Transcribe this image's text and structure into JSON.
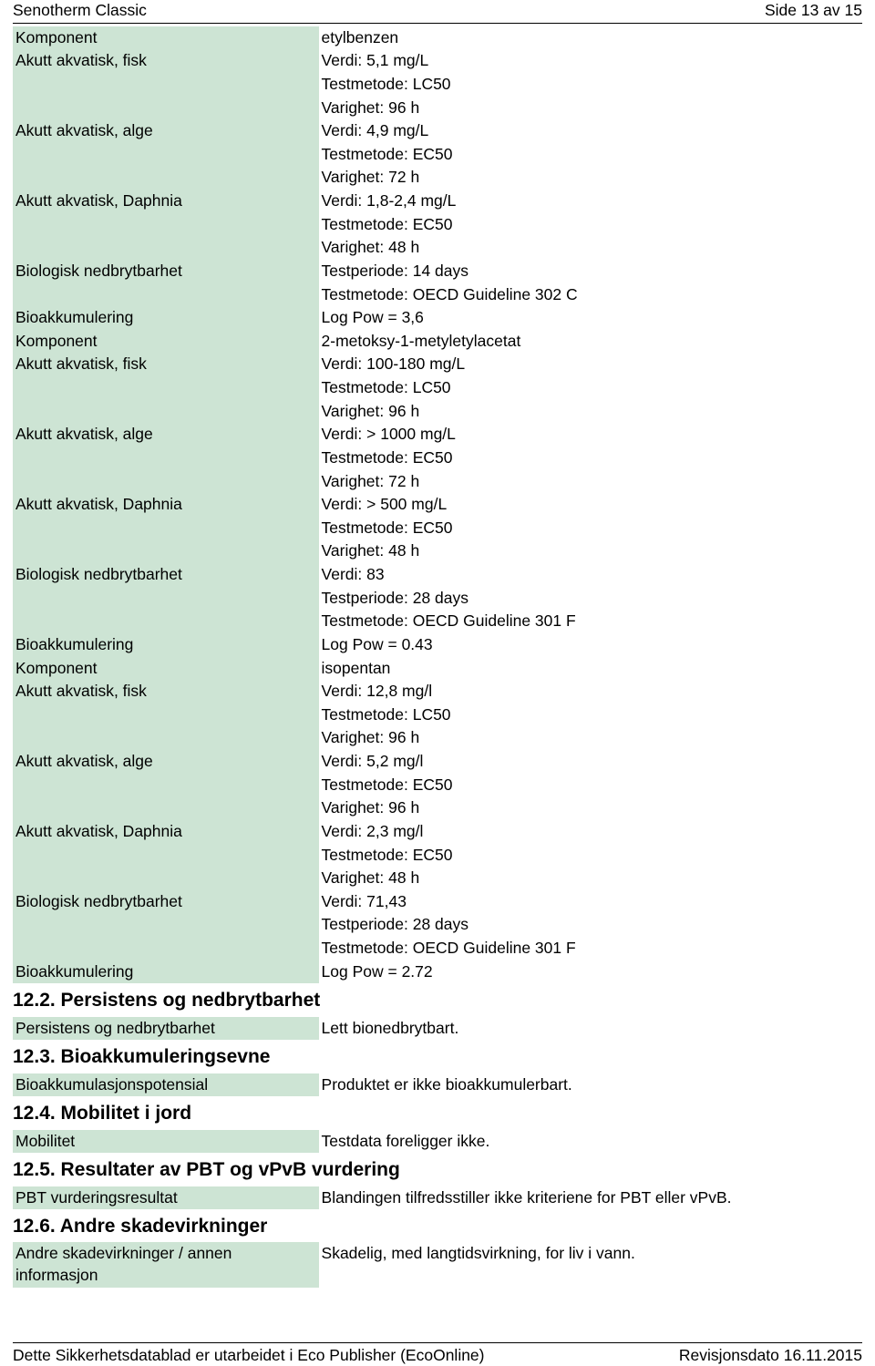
{
  "header": {
    "title": "Senotherm Classic",
    "page": "Side 13 av 15"
  },
  "row_bg": "#cde4d4",
  "rows": [
    {
      "label": "Komponent",
      "value": "etylbenzen"
    },
    {
      "label": "Akutt akvatisk, fisk",
      "value": "Verdi: 5,1 mg/L\nTestmetode: LC50\nVarighet: 96 h"
    },
    {
      "label": "Akutt akvatisk, alge",
      "value": "Verdi: 4,9 mg/L\nTestmetode: EC50\nVarighet: 72 h"
    },
    {
      "label": "Akutt akvatisk, Daphnia",
      "value": "Verdi: 1,8-2,4 mg/L\nTestmetode: EC50\nVarighet: 48 h"
    },
    {
      "label": "Biologisk nedbrytbarhet",
      "value": "Testperiode: 14 days\nTestmetode: OECD Guideline 302 C"
    },
    {
      "label": "Bioakkumulering",
      "value": "Log Pow = 3,6"
    },
    {
      "label": "Komponent",
      "value": "2-metoksy-1-metyletylacetat"
    },
    {
      "label": "Akutt akvatisk, fisk",
      "value": "Verdi: 100-180 mg/L\nTestmetode: LC50\nVarighet: 96 h"
    },
    {
      "label": "Akutt akvatisk, alge",
      "value": "Verdi: > 1000 mg/L\nTestmetode: EC50\nVarighet: 72 h"
    },
    {
      "label": "Akutt akvatisk, Daphnia",
      "value": "Verdi: > 500 mg/L\nTestmetode: EC50\nVarighet: 48 h"
    },
    {
      "label": "Biologisk nedbrytbarhet",
      "value": "Verdi: 83\nTestperiode: 28 days\nTestmetode: OECD Guideline 301 F"
    },
    {
      "label": "Bioakkumulering",
      "value": "Log Pow = 0.43"
    },
    {
      "label": "Komponent",
      "value": "isopentan"
    },
    {
      "label": "Akutt akvatisk, fisk",
      "value": "Verdi: 12,8 mg/l\nTestmetode: LC50\nVarighet: 96 h"
    },
    {
      "label": "Akutt akvatisk, alge",
      "value": "Verdi: 5,2 mg/l\nTestmetode: EC50\nVarighet: 96 h"
    },
    {
      "label": "Akutt akvatisk, Daphnia",
      "value": "Verdi: 2,3 mg/l\nTestmetode: EC50\nVarighet: 48 h"
    },
    {
      "label": "Biologisk nedbrytbarhet",
      "value": "Verdi: 71,43\nTestperiode: 28 days\nTestmetode: OECD Guideline 301 F"
    },
    {
      "label": "Bioakkumulering",
      "value": "Log Pow = 2.72"
    }
  ],
  "section122": {
    "heading": "12.2. Persistens og nedbrytbarhet",
    "rows": [
      {
        "label": "Persistens og nedbrytbarhet",
        "value": "Lett bionedbrytbart."
      }
    ]
  },
  "section123": {
    "heading": "12.3. Bioakkumuleringsevne",
    "rows": [
      {
        "label": "Bioakkumulasjonspotensial",
        "value": "Produktet er ikke bioakkumulerbart."
      }
    ]
  },
  "section124": {
    "heading": "12.4. Mobilitet i jord",
    "rows": [
      {
        "label": "Mobilitet",
        "value": "Testdata foreligger ikke."
      }
    ]
  },
  "section125": {
    "heading": "12.5. Resultater av PBT og vPvB vurdering",
    "rows": [
      {
        "label": "PBT vurderingsresultat",
        "value": "Blandingen tilfredsstiller ikke kriteriene for PBT eller vPvB."
      }
    ]
  },
  "section126": {
    "heading": "12.6. Andre skadevirkninger",
    "rows": [
      {
        "label": "Andre skadevirkninger / annen informasjon",
        "value": "Skadelig, med langtidsvirkning, for liv i vann."
      }
    ]
  },
  "footer": {
    "left": "Dette Sikkerhetsdatablad er utarbeidet i Eco Publisher (EcoOnline)",
    "right": "Revisjonsdato 16.11.2015"
  }
}
